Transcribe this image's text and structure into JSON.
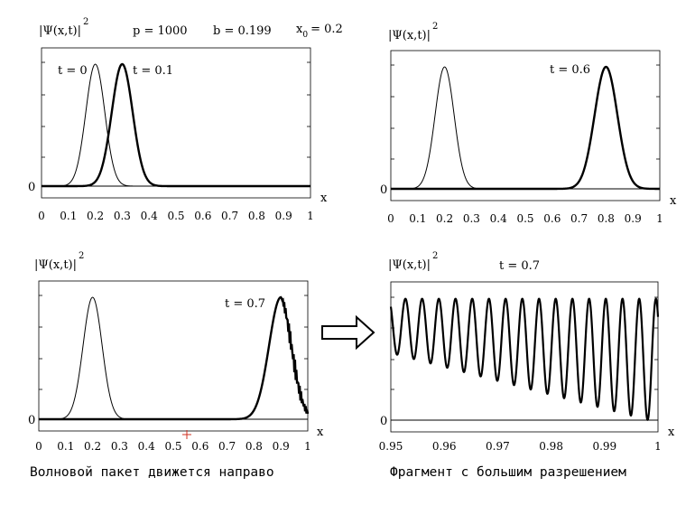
{
  "header": {
    "p_label": "p = 1000",
    "b_label": "b = 0.199",
    "x0_main": "x",
    "x0_sub": "0",
    "x0_value": "= 0.2"
  },
  "captions": {
    "left": "Волновой пакет движется направо",
    "right": "Фрагмент с большим разрешением"
  },
  "arrow": {
    "name": "right-arrow-icon"
  },
  "chart_data": [
    {
      "id": "p1",
      "type": "line",
      "ylabel": "|Ψ(x,t)|",
      "ylabel_power": "2",
      "xlabel": "x",
      "y_zero_label": "0",
      "xlim": [
        0,
        1
      ],
      "xticks": [
        "0",
        "0.1",
        "0.2",
        "0.3",
        "0.4",
        "0.5",
        "0.6",
        "0.7",
        "0.8",
        "0.9",
        "1"
      ],
      "annotations": [
        "t = 0",
        "t = 0.1"
      ],
      "series": [
        {
          "center": 0.2,
          "sigma": 0.05,
          "bold": false
        },
        {
          "center": 0.3,
          "sigma": 0.055,
          "bold": true
        }
      ]
    },
    {
      "id": "p2",
      "type": "line",
      "ylabel": "|Ψ(x,t)|",
      "ylabel_power": "2",
      "xlabel": "x",
      "y_zero_label": "0",
      "xlim": [
        0,
        1
      ],
      "xticks": [
        "0",
        "0.1",
        "0.2",
        "0.3",
        "0.4",
        "0.5",
        "0.6",
        "0.7",
        "0.8",
        "0.9",
        "1"
      ],
      "annotations": [
        "t = 0.6"
      ],
      "series": [
        {
          "center": 0.2,
          "sigma": 0.05,
          "bold": false
        },
        {
          "center": 0.8,
          "sigma": 0.06,
          "bold": true
        }
      ]
    },
    {
      "id": "p3",
      "type": "line",
      "ylabel": "|Ψ(x,t)|",
      "ylabel_power": "2",
      "xlabel": "x",
      "y_zero_label": "0",
      "xlim": [
        0,
        1
      ],
      "xticks": [
        "0",
        "0.1",
        "0.2",
        "0.3",
        "0.4",
        "0.5",
        "0.6",
        "0.7",
        "0.8",
        "0.9",
        "1"
      ],
      "annotations": [
        "t = 0.7"
      ],
      "series": [
        {
          "center": 0.2,
          "sigma": 0.05,
          "bold": false
        },
        {
          "center": 0.9,
          "sigma": 0.062,
          "bold": true,
          "oscillating_from": 0.9
        }
      ]
    },
    {
      "id": "p4",
      "type": "line",
      "ylabel": "|Ψ(x,t)|",
      "ylabel_power": "2",
      "xlabel": "x",
      "y_zero_label": "0",
      "xlim": [
        0.95,
        1
      ],
      "xticks": [
        "0.95",
        "0.96",
        "0.97",
        "0.98",
        "0.99",
        "1"
      ],
      "annotations": [
        "t = 0.7"
      ],
      "series": [
        {
          "oscillation_count": 16,
          "bold": true
        }
      ]
    }
  ]
}
